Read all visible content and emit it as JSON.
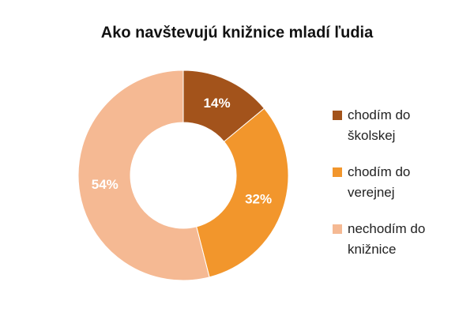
{
  "chart_data": {
    "type": "donut",
    "title": "Ako navštevujú knižnice mladí ľudia",
    "categories": [
      "chodím do školskej",
      "chodím do verejnej",
      "nechodím do knižnice"
    ],
    "values": [
      14,
      32,
      54
    ],
    "value_labels": [
      "14%",
      "32%",
      "54%"
    ],
    "colors": [
      "#a3531b",
      "#f2962c",
      "#f5b993"
    ],
    "legend": "right"
  }
}
